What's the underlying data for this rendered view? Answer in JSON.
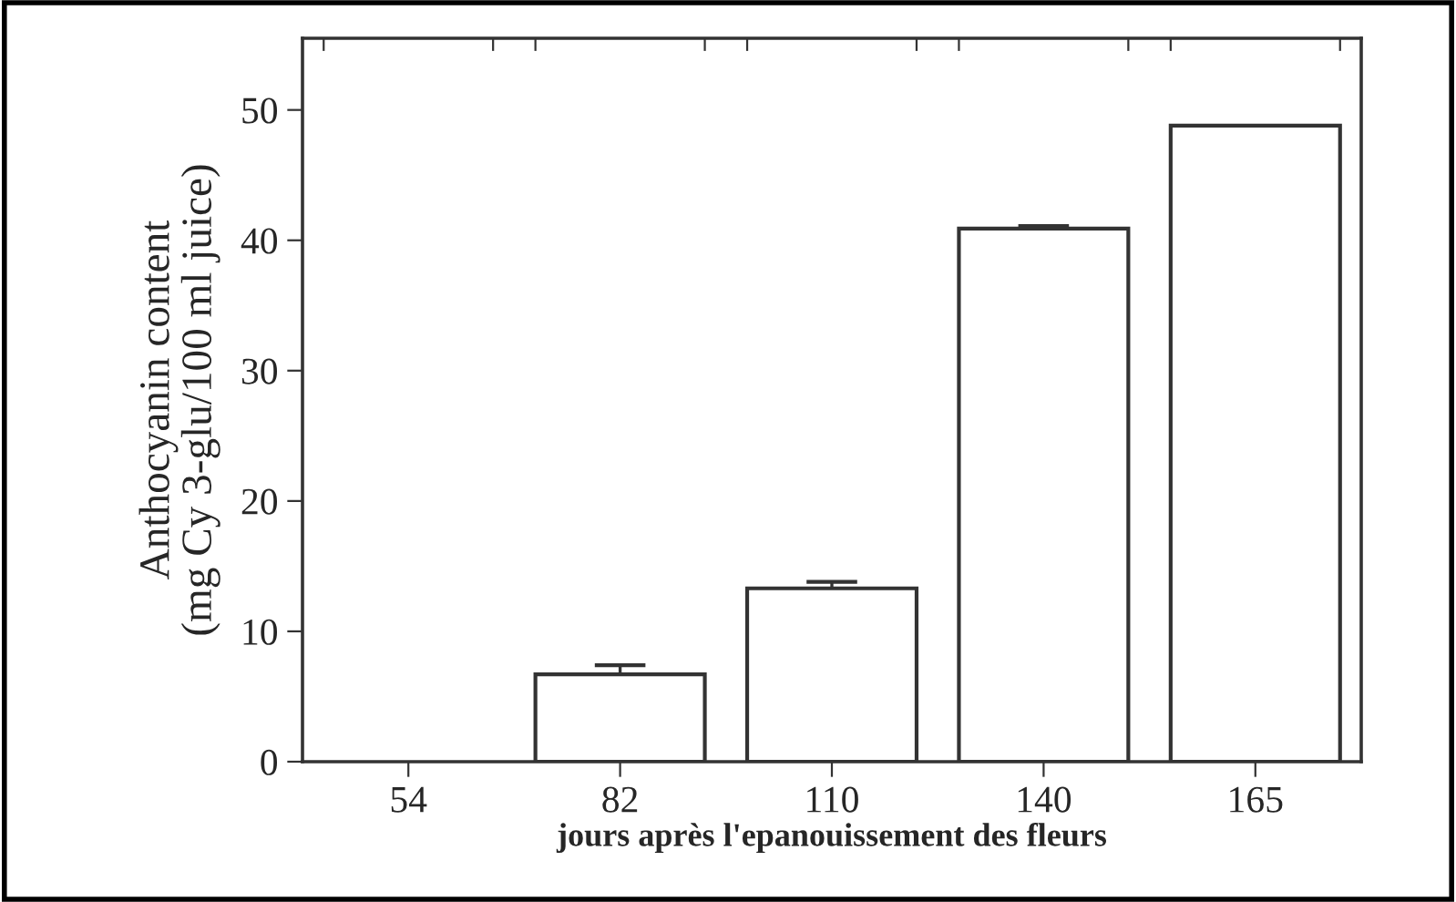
{
  "chart_data": {
    "type": "bar",
    "xlabel": "jours après l'epanouissement des fleurs",
    "ylabel": "Anthocyanin content\n(mg Cy 3-glu/100 ml juice)",
    "categories": [
      "54",
      "82",
      "110",
      "140",
      "165"
    ],
    "values": [
      null,
      6.7,
      13.3,
      40.9,
      48.8
    ],
    "errors": [
      null,
      0.7,
      0.5,
      0.2,
      null
    ],
    "color": "#ffffff",
    "ylim": [
      0,
      55.5
    ],
    "yticks": [
      0,
      10,
      20,
      30,
      40,
      50
    ],
    "grid": false
  }
}
